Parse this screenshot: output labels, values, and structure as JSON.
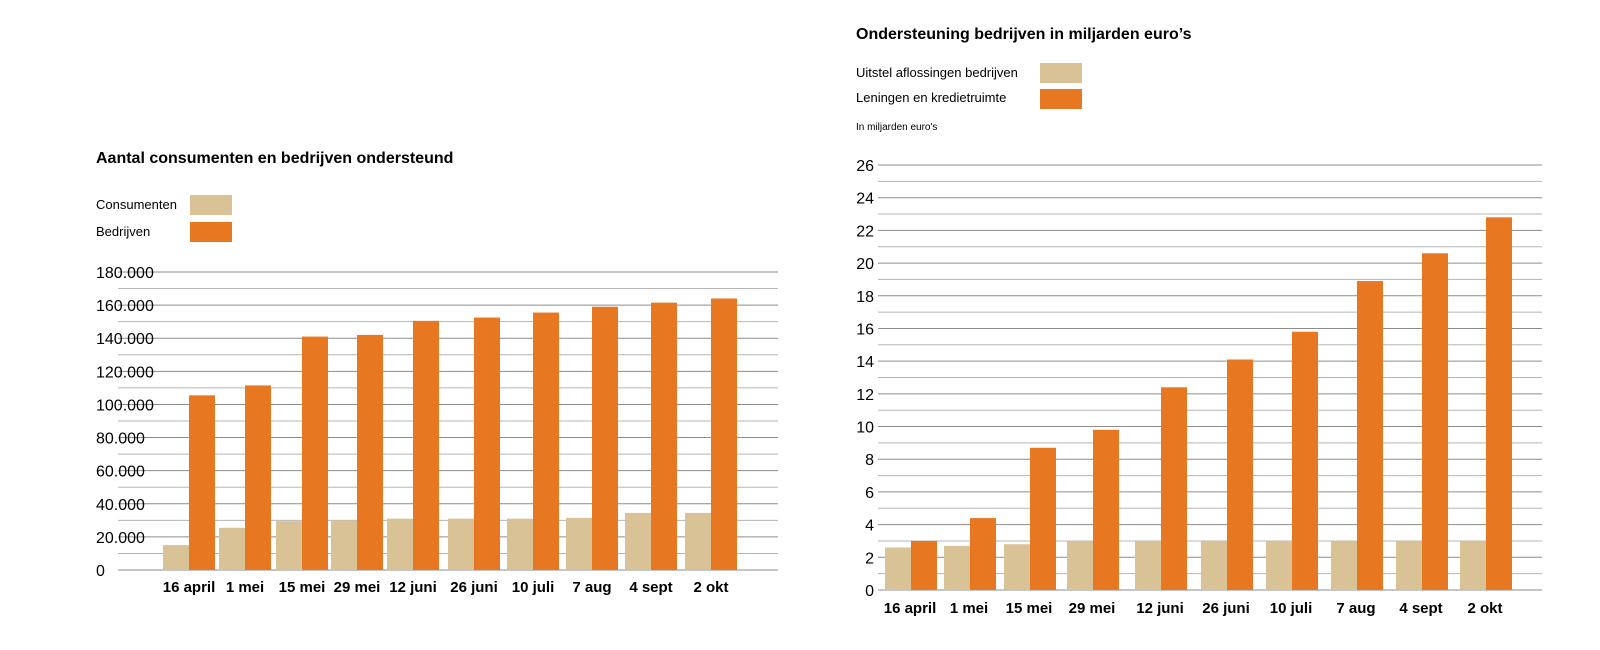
{
  "colors": {
    "consumers": "#d9c295",
    "companies": "#e87722",
    "grid": "#8c8c8c"
  },
  "chart_data": [
    {
      "type": "bar",
      "title": "Aantal consumenten en bedrijven ondersteund",
      "categories": [
        "16 april",
        "1 mei",
        "15 mei",
        "29 mei",
        "12 juni",
        "26 juni",
        "10 juli",
        "7 aug",
        "4 sept",
        "2 okt"
      ],
      "series": [
        {
          "name": "Consumenten",
          "values": [
            15000,
            25500,
            29500,
            30000,
            31000,
            31000,
            31000,
            31500,
            34500,
            34500
          ]
        },
        {
          "name": "Bedrijven",
          "values": [
            105500,
            111500,
            141000,
            142000,
            150500,
            152500,
            155500,
            159000,
            161500,
            164000
          ]
        }
      ],
      "ylim": [
        0,
        180000
      ],
      "yticks": [
        0,
        20000,
        40000,
        60000,
        80000,
        100000,
        120000,
        140000,
        160000,
        180000
      ],
      "ytick_labels": [
        "0",
        "20.000",
        "40.000",
        "60.000",
        "80.000",
        "100.000",
        "120.000",
        "140.000",
        "160.000",
        "180.000"
      ],
      "grid": true,
      "legend_position": "top-left"
    },
    {
      "type": "bar",
      "title": "Ondersteuning bedrijven in miljarden euro’s",
      "unit_note": "In miljarden euro's",
      "categories": [
        "16 april",
        "1 mei",
        "15 mei",
        "29 mei",
        "12 juni",
        "26 juni",
        "10 juli",
        "7 aug",
        "4 sept",
        "2 okt"
      ],
      "series": [
        {
          "name": "Uitstel aflossingen bedrijven",
          "values": [
            2.6,
            2.7,
            2.8,
            3.0,
            3.0,
            3.0,
            3.0,
            3.0,
            3.0,
            3.0
          ]
        },
        {
          "name": "Leningen en kredietruimte",
          "values": [
            3.0,
            4.4,
            8.7,
            9.8,
            12.4,
            14.1,
            15.8,
            18.9,
            20.6,
            22.8
          ]
        }
      ],
      "ylim": [
        0,
        26
      ],
      "yticks": [
        0,
        2,
        4,
        6,
        8,
        10,
        12,
        14,
        16,
        18,
        20,
        22,
        24,
        26
      ],
      "ytick_labels": [
        "0",
        "2",
        "4",
        "6",
        "8",
        "10",
        "12",
        "14",
        "16",
        "18",
        "20",
        "22",
        "24",
        "26"
      ],
      "grid": true,
      "legend_position": "top-left"
    }
  ]
}
